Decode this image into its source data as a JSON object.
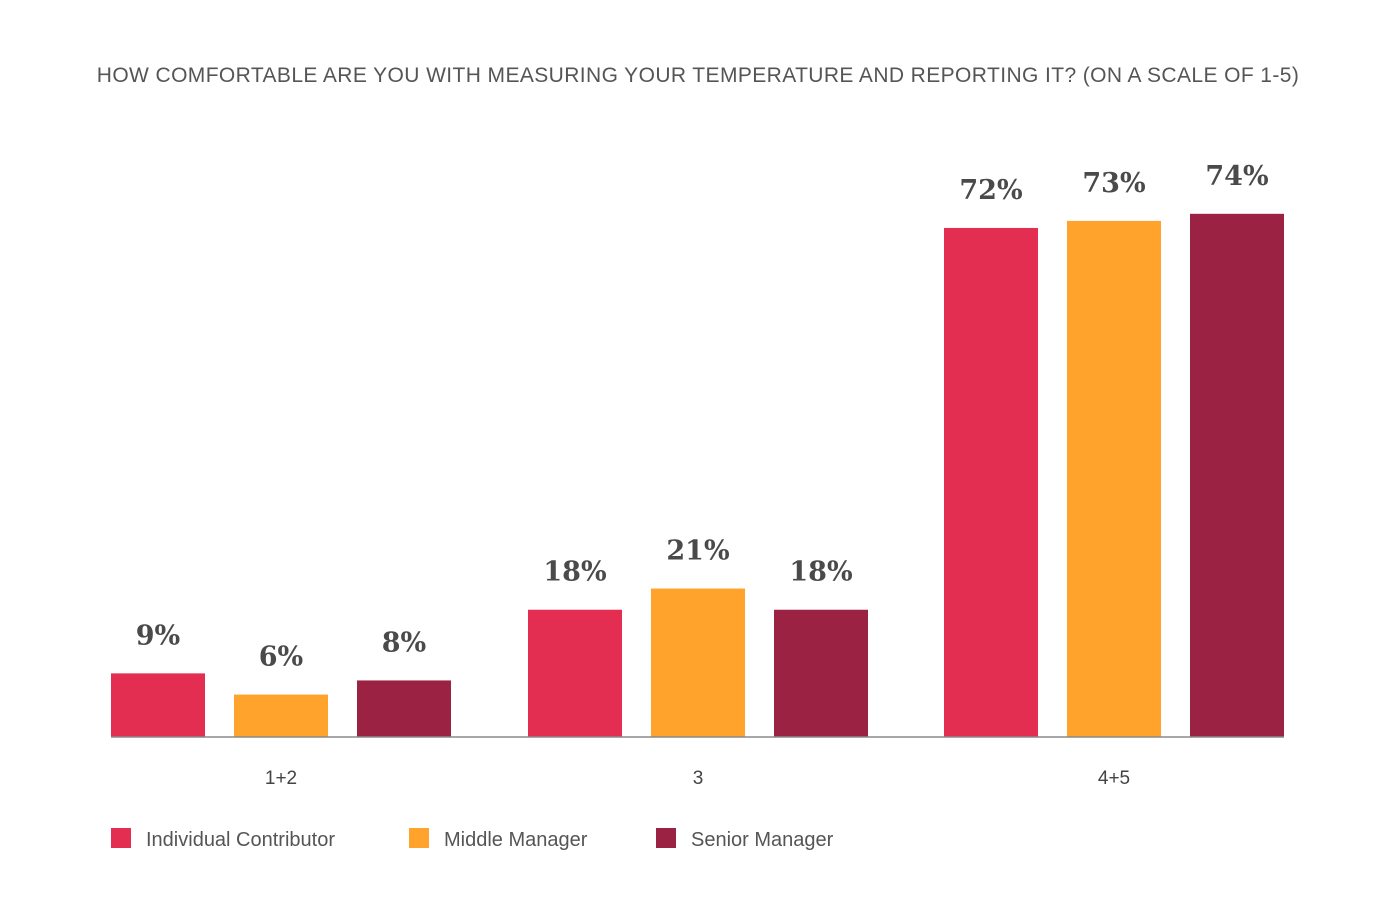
{
  "chart_data": {
    "type": "bar",
    "title": "HOW COMFORTABLE ARE YOU WITH MEASURING YOUR TEMPERATURE AND REPORTING IT? (ON A SCALE OF 1-5)",
    "xlabel": "",
    "ylabel": "",
    "categories": [
      "1+2",
      "3",
      "4+5"
    ],
    "ylim": [
      0,
      74
    ],
    "grid": false,
    "legend_position": "bottom-left",
    "series": [
      {
        "name": "Individual Contributor",
        "color": "#E32D51",
        "values": [
          9,
          18,
          72
        ],
        "labels": [
          "9%",
          "18%",
          "72%"
        ]
      },
      {
        "name": "Middle Manager",
        "color": "#FFA32D",
        "values": [
          6,
          21,
          73
        ],
        "labels": [
          "6%",
          "21%",
          "73%"
        ]
      },
      {
        "name": "Senior Manager",
        "color": "#9B2242",
        "values": [
          8,
          18,
          74
        ],
        "labels": [
          "8%",
          "18%",
          "74%"
        ]
      }
    ]
  }
}
